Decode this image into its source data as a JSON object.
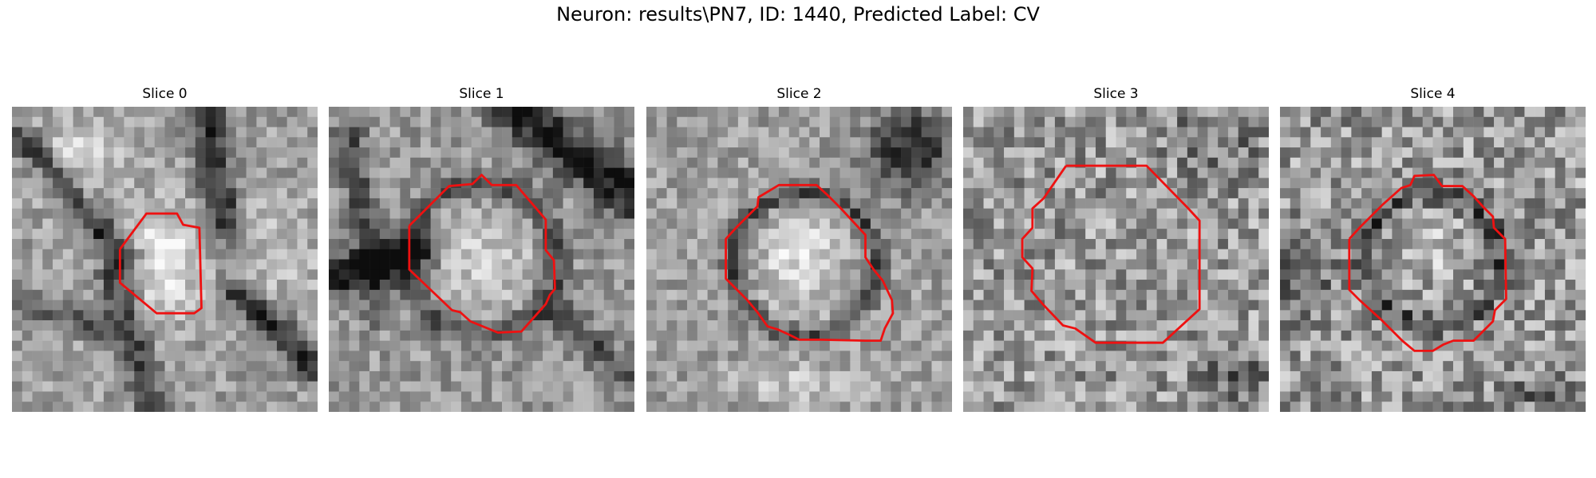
{
  "figure": {
    "title": "Neuron: results\\PN7, ID: 1440, Predicted Label: CV"
  },
  "colors": {
    "contour": "#ee1111"
  },
  "slices": [
    {
      "title": "Slice 0",
      "seed": 11,
      "shade": "bright-blobs-dark-streaks"
    },
    {
      "title": "Slice 1",
      "seed": 23,
      "shade": "bright-cell-dark-bands"
    },
    {
      "title": "Slice 2",
      "seed": 37,
      "shade": "bright-oval-with-dark-ring"
    },
    {
      "title": "Slice 3",
      "seed": 51,
      "shade": "uniform-noisy-gray"
    },
    {
      "title": "Slice 4",
      "seed": 67,
      "shade": "noisy-with-dark-ring"
    }
  ]
}
